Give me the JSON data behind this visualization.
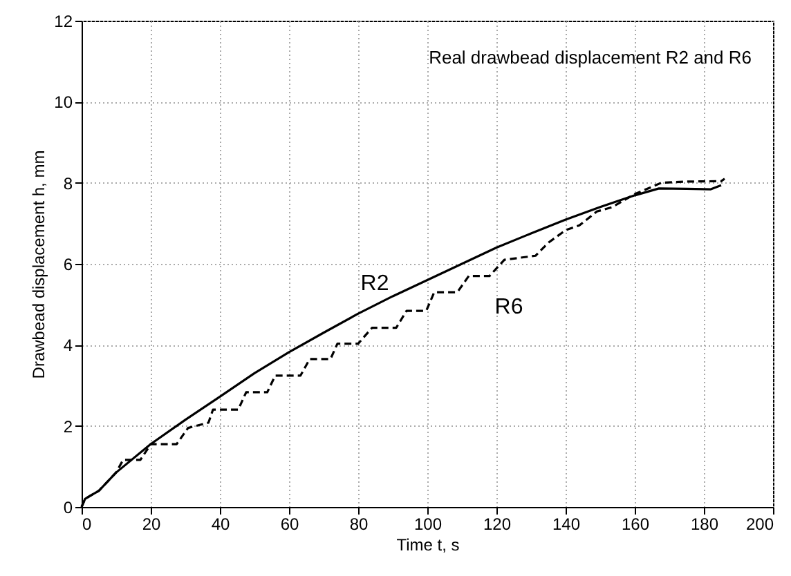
{
  "chart_data": {
    "type": "line",
    "title": "Real drawbead displacement R2 and R6",
    "xlabel": "Time t, s",
    "ylabel": "Drawbead displacement h, mm",
    "xlim": [
      0,
      200
    ],
    "ylim": [
      0,
      12
    ],
    "xticks": [
      0,
      20,
      40,
      60,
      80,
      100,
      120,
      140,
      160,
      180,
      200
    ],
    "yticks": [
      0,
      2,
      4,
      6,
      8,
      10,
      12
    ],
    "grid": true,
    "legend": false,
    "series": [
      {
        "name": "R2",
        "color": "#000000",
        "line_style": "solid",
        "x": [
          0,
          1,
          3,
          5,
          10,
          20,
          30,
          40,
          50,
          60,
          70,
          80,
          90,
          100,
          110,
          120,
          130,
          140,
          150,
          160,
          167,
          175,
          182,
          185
        ],
        "values": [
          0,
          0.2,
          0.3,
          0.4,
          0.85,
          1.55,
          2.15,
          2.72,
          3.3,
          3.82,
          4.3,
          4.77,
          5.2,
          5.6,
          6.0,
          6.4,
          6.75,
          7.09,
          7.4,
          7.69,
          7.86,
          7.85,
          7.84,
          7.94
        ]
      },
      {
        "name": "R6",
        "color": "#000000",
        "line_style": "dashed",
        "x": [
          0,
          1,
          3,
          5,
          10,
          12,
          17,
          20,
          27.5,
          30.8,
          36.7,
          38,
          45.3,
          47.6,
          53.7,
          56,
          63.3,
          66,
          72,
          74,
          80,
          84,
          91,
          94,
          99.7,
          102,
          108.7,
          112,
          118,
          122.3,
          131.3,
          135,
          140,
          144,
          149,
          153.5,
          160,
          167.7,
          175,
          185,
          186
        ],
        "values": [
          0,
          0.2,
          0.3,
          0.4,
          0.85,
          1.16,
          1.16,
          1.55,
          1.55,
          1.95,
          2.08,
          2.4,
          2.4,
          2.83,
          2.83,
          3.24,
          3.24,
          3.65,
          3.65,
          4.03,
          4.03,
          4.42,
          4.42,
          4.84,
          4.84,
          5.3,
          5.3,
          5.7,
          5.7,
          6.1,
          6.2,
          6.52,
          6.83,
          6.95,
          7.29,
          7.4,
          7.72,
          8.0,
          8.03,
          8.04,
          8.1
        ]
      }
    ]
  }
}
